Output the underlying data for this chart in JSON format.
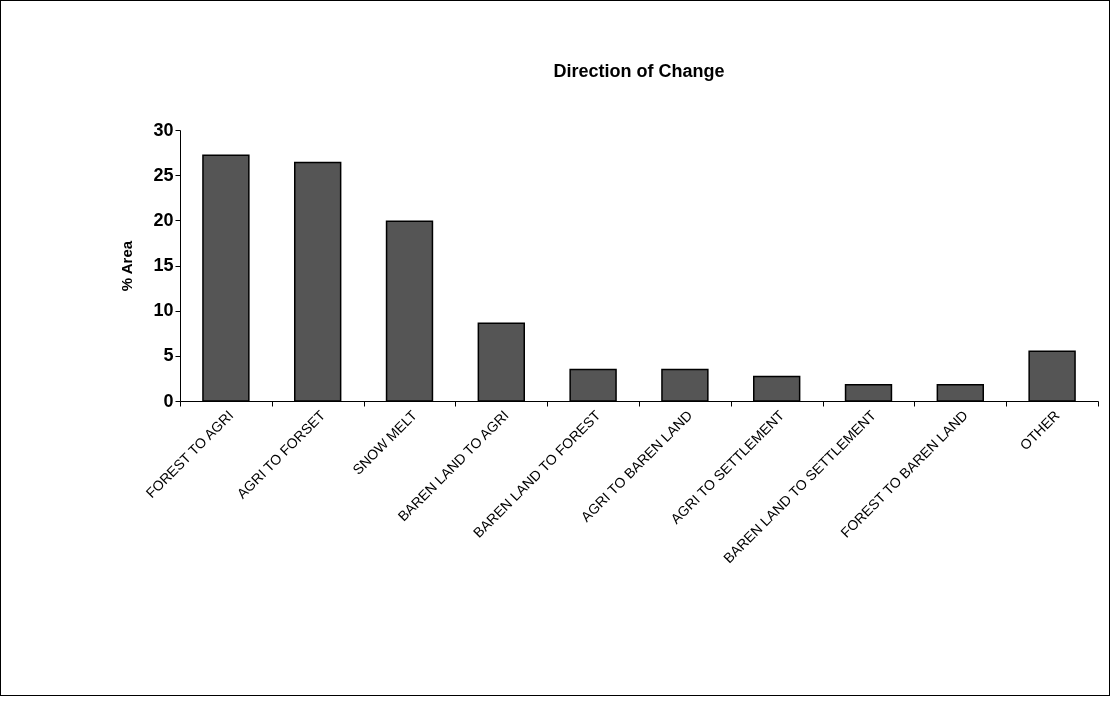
{
  "chart_data": {
    "type": "bar",
    "title": "Direction of Change",
    "ylabel": "% Area",
    "categories": [
      "FOREST TO AGRI",
      "AGRI TO FORSET",
      "SNOW MELT",
      "BAREN LAND TO AGRI",
      "BAREN LAND TO FOREST",
      "AGRI TO BAREN LAND",
      "AGRI TO SETTLEMENT",
      "BAREN LAND TO SETTLEMENT",
      "FOREST TO BAREN LAND",
      "OTHER"
    ],
    "values": [
      27.2,
      26.4,
      19.9,
      8.6,
      3.5,
      3.5,
      2.7,
      1.8,
      1.8,
      5.5
    ],
    "color": "#555555",
    "ylim": [
      0,
      30
    ],
    "yticks": [
      0,
      5,
      10,
      15,
      20,
      25,
      30
    ],
    "grid": false
  }
}
